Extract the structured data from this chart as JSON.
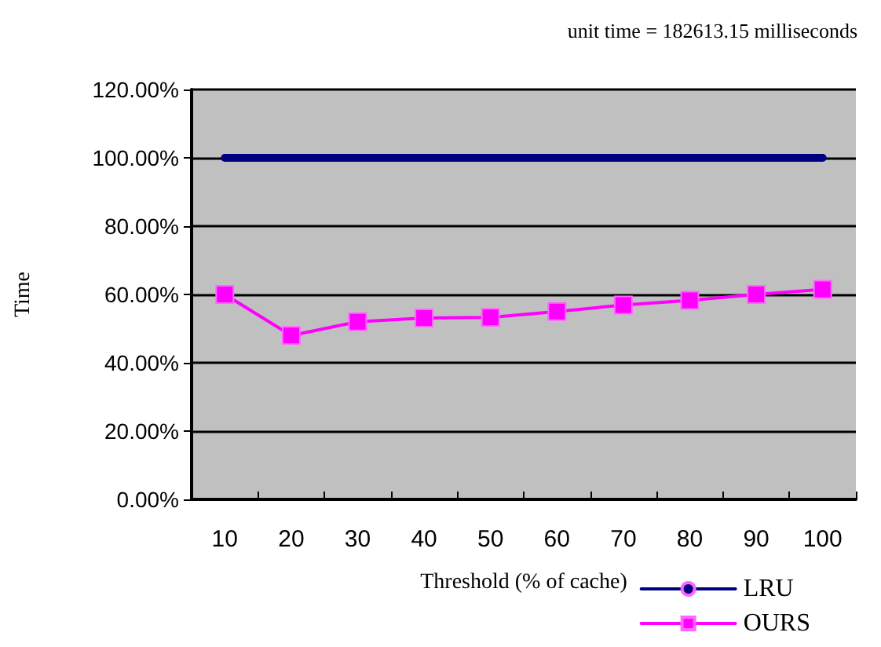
{
  "chart_data": {
    "type": "line",
    "title": "unit time = 182613.15 milliseconds",
    "xlabel": "Threshold (% of cache)",
    "ylabel": "Time",
    "categories": [
      "10",
      "20",
      "30",
      "40",
      "50",
      "60",
      "70",
      "80",
      "90",
      "100"
    ],
    "series": [
      {
        "name": "LRU",
        "color": "#000080",
        "marker": "none",
        "values": [
          100,
          100,
          100,
          100,
          100,
          100,
          100,
          100,
          100,
          100
        ]
      },
      {
        "name": "OURS",
        "color": "#ff00ff",
        "marker": "square",
        "values": [
          60,
          48,
          52,
          53.1,
          53.3,
          55,
          56.9,
          58.3,
          60,
          61.5
        ]
      }
    ],
    "ylim": [
      0,
      120
    ],
    "yticks": [
      {
        "value": 0,
        "label": "0.00%"
      },
      {
        "value": 20,
        "label": "20.00%"
      },
      {
        "value": 40,
        "label": "40.00%"
      },
      {
        "value": 60,
        "label": "60.00%"
      },
      {
        "value": 80,
        "label": "80.00%"
      },
      {
        "value": 100,
        "label": "100.00%"
      },
      {
        "value": 120,
        "label": "120.00%"
      }
    ],
    "grid": "y",
    "legend": "bottom right"
  }
}
